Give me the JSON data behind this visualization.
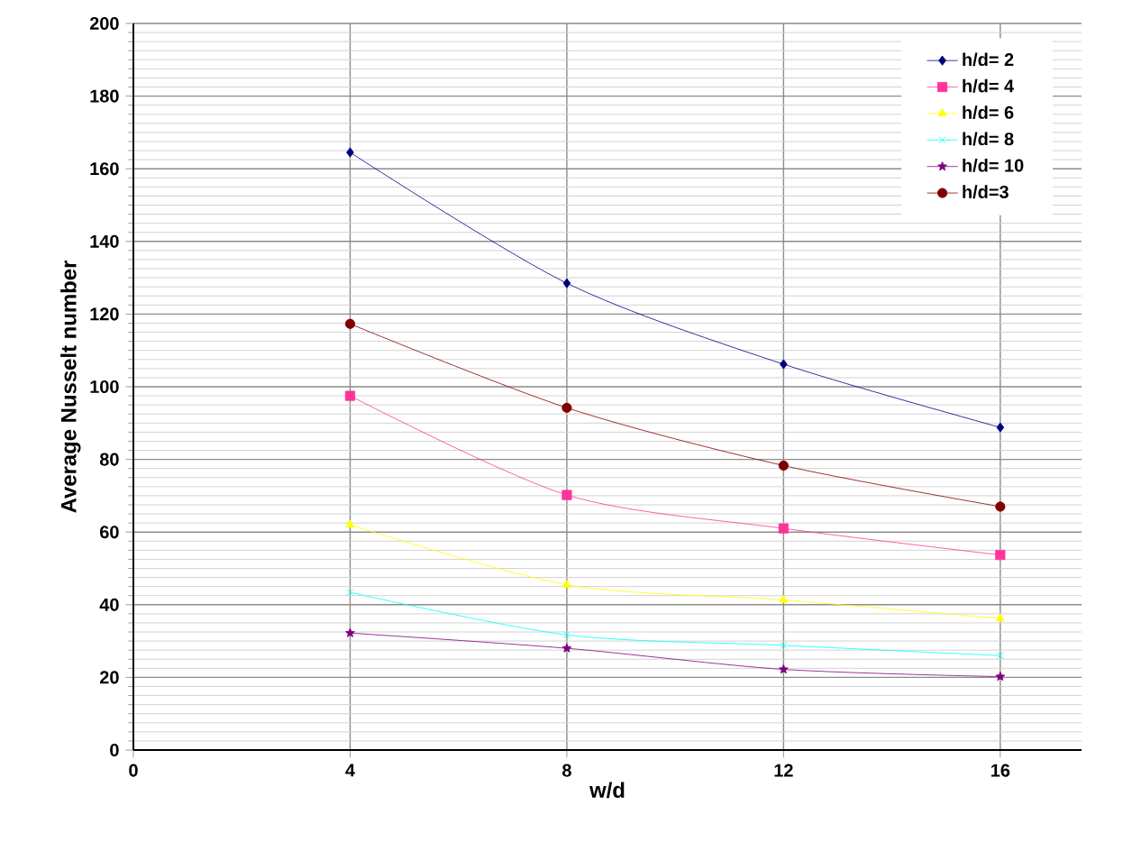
{
  "chart_data": {
    "type": "line",
    "xlabel": "w/d",
    "ylabel": "Average Nusselt number",
    "x": [
      4,
      8,
      12,
      16
    ],
    "series": [
      {
        "name": "h/d= 2",
        "color": "#000080",
        "marker": "diamond",
        "values": [
          164.5,
          128.5,
          106.2,
          88.8
        ]
      },
      {
        "name": "h/d= 4",
        "color": "#ff3399",
        "values": [
          97.5,
          70.2,
          61,
          53.7
        ],
        "marker": "square"
      },
      {
        "name": "h/d= 6",
        "color": "#ffff00",
        "marker": "triangle",
        "values": [
          62,
          45.5,
          41.3,
          36.2
        ]
      },
      {
        "name": "h/d= 8",
        "color": "#00ffff",
        "marker": "cross",
        "values": [
          43.4,
          31.7,
          28.8,
          26
        ]
      },
      {
        "name": "h/d= 10",
        "color": "#800080",
        "marker": "star",
        "values": [
          32.2,
          28,
          22.2,
          20.2
        ]
      },
      {
        "name": "h/d=3",
        "color": "#800000",
        "marker": "circle",
        "values": [
          117.3,
          94.2,
          78.3,
          67
        ]
      }
    ],
    "xlim": [
      0,
      17.5
    ],
    "xticks": [
      0,
      4,
      8,
      12,
      16
    ],
    "ylim": [
      0,
      200
    ],
    "yticks": [
      0,
      20,
      40,
      60,
      80,
      100,
      120,
      140,
      160,
      180,
      200
    ],
    "grid": true,
    "legend": "top right"
  }
}
